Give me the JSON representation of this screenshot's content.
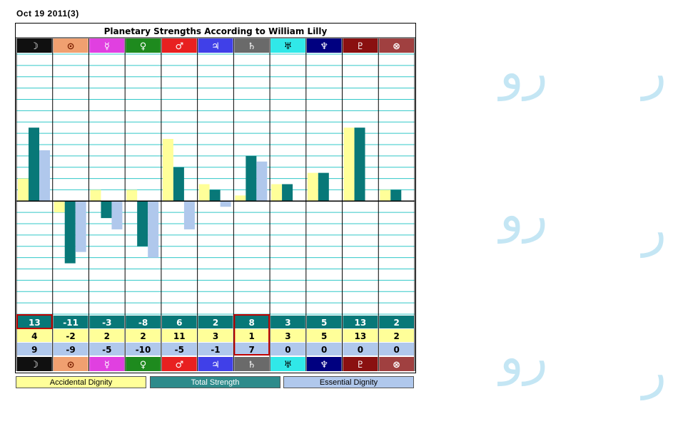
{
  "date_label": "Oct 19 2011(3)",
  "colors": {
    "accidental": "#ffff99",
    "total": "#087878",
    "essential": "#b0c8ec",
    "gridline": "#30c8c8",
    "highlight_border": "#c00000"
  },
  "planets": [
    {
      "glyph": "☽",
      "name_icon": "moon-icon",
      "bg": "#101010",
      "fg": "#ffffff"
    },
    {
      "glyph": "⊙",
      "name_icon": "sun-icon",
      "bg": "#f0a070",
      "fg": "#7a2000"
    },
    {
      "glyph": "☿",
      "name_icon": "mercury-icon",
      "bg": "#e040e0",
      "fg": "#ffffff"
    },
    {
      "glyph": "♀",
      "name_icon": "venus-icon",
      "bg": "#1e8a1e",
      "fg": "#ffffff"
    },
    {
      "glyph": "♂",
      "name_icon": "mars-icon",
      "bg": "#e82020",
      "fg": "#ffffff"
    },
    {
      "glyph": "♃",
      "name_icon": "jupiter-icon",
      "bg": "#4040e8",
      "fg": "#ffffff"
    },
    {
      "glyph": "♄",
      "name_icon": "saturn-icon",
      "bg": "#6a6a6a",
      "fg": "#ffffff"
    },
    {
      "glyph": "♅",
      "name_icon": "uranus-icon",
      "bg": "#30e8e8",
      "fg": "#000000"
    },
    {
      "glyph": "♆",
      "name_icon": "neptune-icon",
      "bg": "#000080",
      "fg": "#ffffff"
    },
    {
      "glyph": "♇",
      "name_icon": "pluto-icon",
      "bg": "#8a1010",
      "fg": "#ffffff"
    },
    {
      "glyph": "⊗",
      "name_icon": "part-of-fortune-icon",
      "bg": "#a04040",
      "fg": "#ffffff"
    }
  ],
  "legend": {
    "accidental": "Accidental Dignity",
    "total": "Total Strength",
    "essential": "Essential Dignity"
  },
  "chart_data": {
    "type": "bar",
    "title": "Planetary Strengths According to William Lilly",
    "categories": [
      "☽",
      "⊙",
      "☿",
      "♀",
      "♂",
      "♃",
      "♄",
      "♅",
      "♆",
      "♇",
      "⊗"
    ],
    "series": [
      {
        "name": "Accidental Dignity",
        "values": [
          4,
          -2,
          2,
          2,
          11,
          3,
          1,
          3,
          5,
          13,
          2
        ]
      },
      {
        "name": "Total Strength",
        "values": [
          13,
          -11,
          -3,
          -8,
          6,
          2,
          8,
          3,
          5,
          13,
          2
        ]
      },
      {
        "name": "Essential Dignity",
        "values": [
          9,
          -9,
          -5,
          -10,
          -5,
          -1,
          7,
          0,
          0,
          0,
          0
        ]
      }
    ],
    "ylim": [
      -20,
      26
    ],
    "grid": true,
    "highlighted_column": 6,
    "legend_position": "bottom"
  }
}
